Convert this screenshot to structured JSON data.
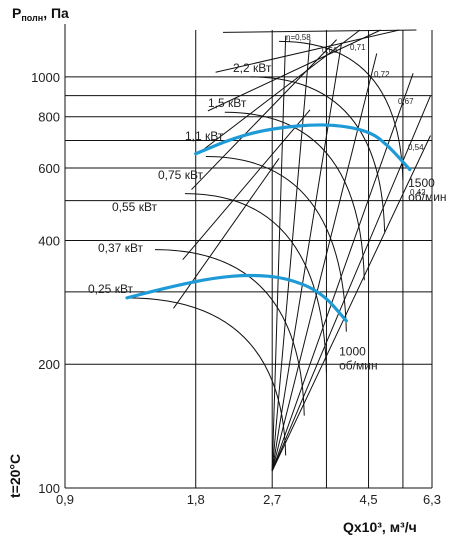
{
  "chart_data": {
    "type": "line",
    "y_axis": {
      "title": "P",
      "title_sub": "полн",
      "title_tail": ", Па",
      "scale": "log",
      "range": [
        100,
        1300
      ],
      "ticks": [
        {
          "value": 100,
          "label": "100"
        },
        {
          "value": 200,
          "label": "200"
        },
        {
          "value": 400,
          "label": "400"
        },
        {
          "value": 600,
          "label": "600"
        },
        {
          "value": 800,
          "label": "800"
        },
        {
          "value": 1000,
          "label": "1000"
        }
      ],
      "gridlines": [
        100,
        200,
        300,
        400,
        500,
        600,
        700,
        800,
        900,
        1000
      ]
    },
    "x_axis": {
      "title": "Qx10³, м³/ч",
      "scale": "log",
      "range": [
        0.9,
        6.3
      ],
      "ticks": [
        {
          "value": 0.9,
          "label": "0,9"
        },
        {
          "value": 1.8,
          "label": "1,8"
        },
        {
          "value": 2.7,
          "label": "2,7"
        },
        {
          "value": 4.5,
          "label": "4,5"
        },
        {
          "value": 6.3,
          "label": "6,3"
        }
      ],
      "gridlines": [
        0.9,
        1.8,
        2.7,
        3.6,
        4.5,
        5.4,
        6.3
      ]
    },
    "temperature_label": "t=20°C",
    "series": [
      {
        "name": "1500 об/мин",
        "label_lines": [
          "1500",
          "об/мин"
        ],
        "color": "#1e9ad6",
        "points": [
          [
            1.8,
            650
          ],
          [
            2.2,
            710
          ],
          [
            2.7,
            750
          ],
          [
            3.6,
            770
          ],
          [
            4.5,
            740
          ],
          [
            5.0,
            680
          ],
          [
            5.6,
            595
          ]
        ]
      },
      {
        "name": "1000 об/мин",
        "label_lines": [
          "1000",
          "об/мин"
        ],
        "color": "#1e9ad6",
        "points": [
          [
            1.25,
            290
          ],
          [
            1.6,
            310
          ],
          [
            2.0,
            325
          ],
          [
            2.4,
            330
          ],
          [
            2.9,
            325
          ],
          [
            3.5,
            300
          ],
          [
            4.0,
            255
          ]
        ]
      }
    ],
    "power_lines": [
      {
        "label": "0,25 кВт"
      },
      {
        "label": "0,37 кВт"
      },
      {
        "label": "0,55 кВт"
      },
      {
        "label": "0,75 кВт"
      },
      {
        "label": "1,1 кВт"
      },
      {
        "label": "1,5 кВт"
      },
      {
        "label": "2,2 кВт"
      }
    ],
    "efficiency_lines": [
      {
        "label": "η=0,58"
      },
      {
        "label": "0,66"
      },
      {
        "label": "0,71"
      },
      {
        "label": "0,72"
      },
      {
        "label": "0,67"
      },
      {
        "label": "0,54"
      },
      {
        "label": "0,42"
      }
    ]
  }
}
